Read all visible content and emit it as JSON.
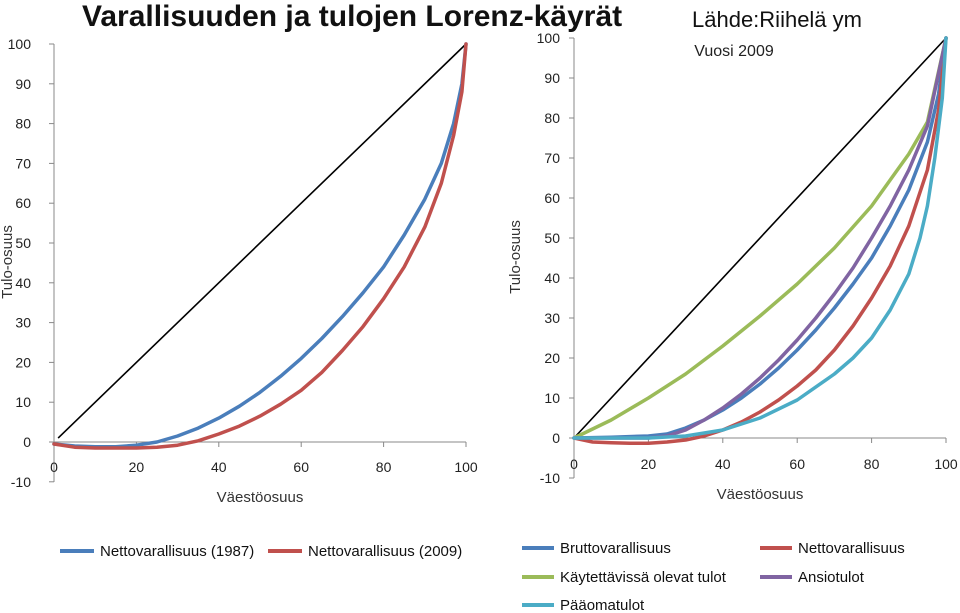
{
  "title": "Varallisuuden ja tulojen Lorenz-käyrät",
  "source": "Lähde:Riihelä ym",
  "chart_data": [
    {
      "type": "line",
      "title": "",
      "xlabel": "Väestöosuus",
      "ylabel": "Tulo-osuus",
      "xlim": [
        0,
        100
      ],
      "ylim": [
        -10,
        100
      ],
      "x_ticks": [
        "0",
        "20",
        "40",
        "60",
        "80",
        "100"
      ],
      "y_ticks": [
        "-10",
        "0",
        "10",
        "20",
        "30",
        "40",
        "50",
        "60",
        "70",
        "80",
        "90",
        "100"
      ],
      "equality_line": [
        [
          1,
          1
        ],
        [
          100,
          100
        ]
      ],
      "series": [
        {
          "name": "Nettovarallisuus (1987)",
          "color": "#4a7ebb",
          "points": [
            [
              0,
              -0.5
            ],
            [
              5,
              -1
            ],
            [
              10,
              -1.2
            ],
            [
              15,
              -1.2
            ],
            [
              20,
              -0.8
            ],
            [
              25,
              0
            ],
            [
              30,
              1.5
            ],
            [
              35,
              3.5
            ],
            [
              40,
              6
            ],
            [
              45,
              9
            ],
            [
              50,
              12.5
            ],
            [
              55,
              16.5
            ],
            [
              60,
              21
            ],
            [
              65,
              26
            ],
            [
              70,
              31.5
            ],
            [
              75,
              37.5
            ],
            [
              80,
              44
            ],
            [
              85,
              52
            ],
            [
              90,
              61
            ],
            [
              94,
              70
            ],
            [
              97,
              80
            ],
            [
              99,
              90
            ],
            [
              100,
              100
            ]
          ]
        },
        {
          "name": "Nettovarallisuus (2009)",
          "color": "#c0504d",
          "points": [
            [
              0,
              -0.5
            ],
            [
              5,
              -1.3
            ],
            [
              10,
              -1.5
            ],
            [
              15,
              -1.5
            ],
            [
              20,
              -1.5
            ],
            [
              25,
              -1.3
            ],
            [
              30,
              -0.8
            ],
            [
              35,
              0.3
            ],
            [
              40,
              2
            ],
            [
              45,
              4
            ],
            [
              50,
              6.5
            ],
            [
              55,
              9.5
            ],
            [
              60,
              13
            ],
            [
              65,
              17.5
            ],
            [
              70,
              23
            ],
            [
              75,
              29
            ],
            [
              80,
              36
            ],
            [
              85,
              44
            ],
            [
              90,
              54
            ],
            [
              94,
              65
            ],
            [
              97,
              77
            ],
            [
              99,
              88
            ],
            [
              100,
              100
            ]
          ]
        }
      ]
    },
    {
      "type": "line",
      "title": "Vuosi 2009",
      "xlabel": "Väestöosuus",
      "ylabel": "Tulo-osuus",
      "xlim": [
        0,
        100
      ],
      "ylim": [
        -10,
        100
      ],
      "x_ticks": [
        "0",
        "20",
        "40",
        "60",
        "80",
        "100"
      ],
      "y_ticks": [
        "-10",
        "0",
        "10",
        "20",
        "30",
        "40",
        "50",
        "60",
        "70",
        "80",
        "90",
        "100"
      ],
      "equality_line": [
        [
          0,
          0
        ],
        [
          100,
          100
        ]
      ],
      "series": [
        {
          "name": "Bruttovarallisuus",
          "color": "#4a7ebb",
          "points": [
            [
              0,
              0
            ],
            [
              10,
              0.2
            ],
            [
              20,
              0.5
            ],
            [
              25,
              1
            ],
            [
              30,
              2.5
            ],
            [
              35,
              4.5
            ],
            [
              40,
              7
            ],
            [
              45,
              10
            ],
            [
              50,
              13.5
            ],
            [
              55,
              17.5
            ],
            [
              60,
              22
            ],
            [
              65,
              27
            ],
            [
              70,
              32.5
            ],
            [
              75,
              38.5
            ],
            [
              80,
              45
            ],
            [
              85,
              53
            ],
            [
              90,
              62
            ],
            [
              95,
              74
            ],
            [
              98,
              86
            ],
            [
              100,
              100
            ]
          ]
        },
        {
          "name": "Nettovarallisuus",
          "color": "#c0504d",
          "points": [
            [
              0,
              0
            ],
            [
              5,
              -1
            ],
            [
              10,
              -1.2
            ],
            [
              15,
              -1.3
            ],
            [
              20,
              -1.3
            ],
            [
              25,
              -1
            ],
            [
              30,
              -0.5
            ],
            [
              35,
              0.5
            ],
            [
              40,
              2
            ],
            [
              45,
              4
            ],
            [
              50,
              6.5
            ],
            [
              55,
              9.5
            ],
            [
              60,
              13
            ],
            [
              65,
              17
            ],
            [
              70,
              22
            ],
            [
              75,
              28
            ],
            [
              80,
              35
            ],
            [
              85,
              43
            ],
            [
              90,
              53
            ],
            [
              95,
              67
            ],
            [
              98,
              82
            ],
            [
              100,
              100
            ]
          ]
        },
        {
          "name": "Käytettävissä olevat tulot",
          "color": "#9bbb59",
          "points": [
            [
              0,
              0
            ],
            [
              10,
              4.5
            ],
            [
              20,
              10
            ],
            [
              30,
              16
            ],
            [
              40,
              23
            ],
            [
              50,
              30.5
            ],
            [
              60,
              38.5
            ],
            [
              70,
              47.5
            ],
            [
              80,
              58
            ],
            [
              90,
              71
            ],
            [
              95,
              79
            ],
            [
              100,
              100
            ]
          ]
        },
        {
          "name": "Ansiotulot",
          "color": "#8064a2",
          "points": [
            [
              0,
              0
            ],
            [
              10,
              0
            ],
            [
              20,
              0
            ],
            [
              25,
              0.5
            ],
            [
              30,
              2
            ],
            [
              35,
              4.5
            ],
            [
              40,
              7.5
            ],
            [
              45,
              11
            ],
            [
              50,
              15
            ],
            [
              55,
              19.5
            ],
            [
              60,
              24.5
            ],
            [
              65,
              30
            ],
            [
              70,
              36
            ],
            [
              75,
              42.5
            ],
            [
              80,
              50
            ],
            [
              85,
              58
            ],
            [
              90,
              67
            ],
            [
              95,
              78
            ],
            [
              100,
              100
            ]
          ]
        },
        {
          "name": "Pääomatulot",
          "color": "#4bacc6",
          "points": [
            [
              0,
              0
            ],
            [
              10,
              0
            ],
            [
              20,
              0
            ],
            [
              30,
              0.5
            ],
            [
              40,
              2
            ],
            [
              50,
              5
            ],
            [
              60,
              9.5
            ],
            [
              70,
              16
            ],
            [
              75,
              20
            ],
            [
              80,
              25
            ],
            [
              85,
              32
            ],
            [
              90,
              41
            ],
            [
              93,
              50
            ],
            [
              95,
              58
            ],
            [
              97,
              70
            ],
            [
              99,
              85
            ],
            [
              100,
              100
            ]
          ]
        }
      ]
    }
  ]
}
